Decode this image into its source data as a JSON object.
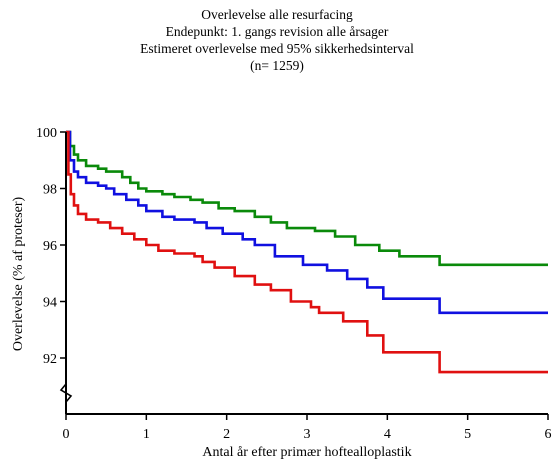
{
  "chart_data": {
    "type": "line",
    "title": "Overlevelse alle resurfacing",
    "subtitle_lines": [
      "Endepunkt: 1. gangs revision alle årsager",
      "Estimeret overlevelse med 95% sikkerhedsinterval",
      "(n= 1259)"
    ],
    "xlabel": "Antal år efter primær hoftealloplastik",
    "ylabel": "Overlevelse (% af proteser)",
    "xlim": [
      0,
      6
    ],
    "ylim": [
      90,
      100
    ],
    "x_ticks": [
      0,
      1,
      2,
      3,
      4,
      5,
      6
    ],
    "x_tick_labels": [
      "0",
      "1",
      "2",
      "3",
      "4",
      "5",
      "6"
    ],
    "y_ticks": [
      92,
      94,
      96,
      98,
      100
    ],
    "y_tick_labels": [
      "92",
      "94",
      "96",
      "98",
      "100"
    ],
    "y_axis_break": true,
    "step": true,
    "grid": false,
    "legend": "none",
    "series": [
      {
        "role": "upper-95-ci",
        "color": "#0a8a0a",
        "x": [
          0,
          0.05,
          0.1,
          0.15,
          0.25,
          0.4,
          0.5,
          0.7,
          0.8,
          0.9,
          1.0,
          1.2,
          1.35,
          1.55,
          1.7,
          1.9,
          2.1,
          2.35,
          2.55,
          2.75,
          3.1,
          3.35,
          3.6,
          3.9,
          4.15,
          4.65,
          6.0
        ],
        "y": [
          100,
          99.5,
          99.2,
          99.0,
          98.8,
          98.7,
          98.6,
          98.4,
          98.2,
          98.0,
          97.9,
          97.8,
          97.7,
          97.6,
          97.5,
          97.3,
          97.2,
          97.0,
          96.8,
          96.6,
          96.5,
          96.3,
          96.0,
          95.8,
          95.6,
          95.3,
          95.3
        ]
      },
      {
        "role": "estimate",
        "color": "#1010e0",
        "x": [
          0,
          0.05,
          0.1,
          0.15,
          0.25,
          0.4,
          0.5,
          0.6,
          0.75,
          0.9,
          1.0,
          1.2,
          1.35,
          1.6,
          1.75,
          1.95,
          2.2,
          2.35,
          2.6,
          2.95,
          3.25,
          3.5,
          3.75,
          3.95,
          4.65,
          6.0
        ],
        "y": [
          100,
          99.0,
          98.6,
          98.4,
          98.2,
          98.1,
          98.0,
          97.8,
          97.6,
          97.4,
          97.2,
          97.0,
          96.9,
          96.8,
          96.6,
          96.4,
          96.2,
          96.0,
          95.6,
          95.3,
          95.1,
          94.8,
          94.5,
          94.1,
          93.6,
          93.6
        ]
      },
      {
        "role": "lower-95-ci",
        "color": "#e01010",
        "x": [
          0,
          0.03,
          0.06,
          0.1,
          0.15,
          0.25,
          0.4,
          0.55,
          0.7,
          0.85,
          1.0,
          1.15,
          1.35,
          1.6,
          1.7,
          1.85,
          2.1,
          2.35,
          2.55,
          2.8,
          3.05,
          3.15,
          3.45,
          3.75,
          3.95,
          4.65,
          6.0
        ],
        "y": [
          100,
          98.5,
          97.8,
          97.4,
          97.1,
          96.9,
          96.8,
          96.6,
          96.4,
          96.2,
          96.0,
          95.8,
          95.7,
          95.6,
          95.4,
          95.2,
          94.9,
          94.6,
          94.4,
          94.0,
          93.8,
          93.6,
          93.3,
          92.8,
          92.2,
          91.5,
          91.5
        ]
      }
    ]
  }
}
